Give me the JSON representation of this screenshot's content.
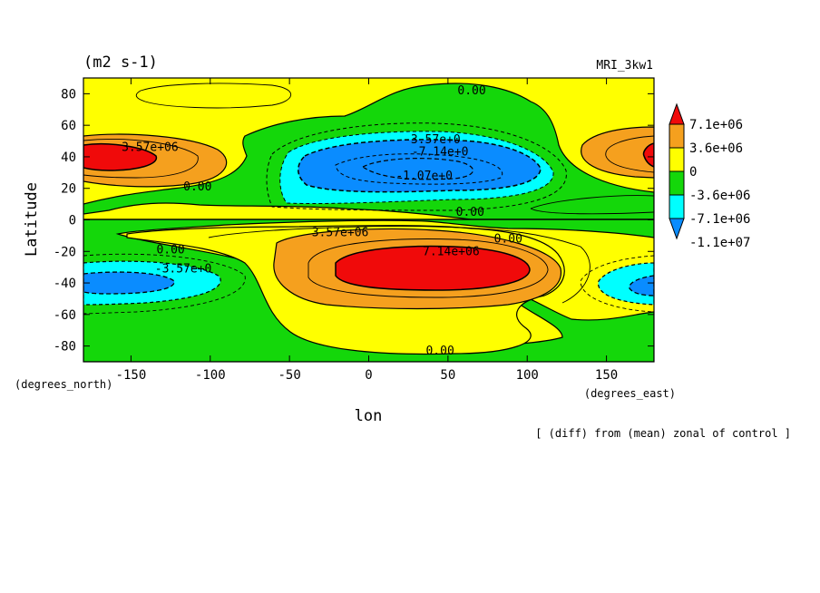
{
  "header": {
    "units": "(m2 s-1)",
    "model": "MRI_3kw1"
  },
  "axes": {
    "ylabel": "Latitude",
    "xlabel": "lon",
    "x_units": "(degrees_east)",
    "y_units": "(degrees_north)"
  },
  "footer": {
    "caption": "[ (diff) from (mean) zonal of control ]"
  },
  "colors": {
    "red": "#f00a0a",
    "orange": "#f5a01e",
    "yellow": "#ffff00",
    "green": "#14d70a",
    "cyan": "#00ffff",
    "blue": "#0a8cff"
  },
  "chart_data": {
    "type": "heatmap",
    "subtype": "filled-contour",
    "title": "",
    "xlabel": "lon",
    "ylabel": "Latitude",
    "xlim": [
      -180,
      180
    ],
    "ylim": [
      -90,
      90
    ],
    "xticks": [
      -150,
      -100,
      -50,
      0,
      50,
      100,
      150
    ],
    "yticks": [
      -80,
      -60,
      -40,
      -20,
      0,
      20,
      40,
      60,
      80
    ],
    "colorbar": {
      "labels": [
        "7.1e+06",
        "3.6e+06",
        "0",
        "-3.6e+06",
        "-7.1e+06",
        "-1.1e+07"
      ],
      "levels": [
        7100000,
        3600000,
        0,
        -3600000,
        -7100000,
        -11000000
      ],
      "colors": [
        "#f00a0a",
        "#f5a01e",
        "#ffff00",
        "#14d70a",
        "#00ffff",
        "#0a8cff"
      ]
    },
    "contour_labels": [
      {
        "text": "0.00",
        "lon": 65,
        "lat": 82
      },
      {
        "text": "3.57e+06",
        "lon": -138,
        "lat": 46
      },
      {
        "text": "-3.57e+0",
        "lon": 40,
        "lat": 51
      },
      {
        "text": "-7.14e+0",
        "lon": 45,
        "lat": 43
      },
      {
        "text": "-1.07e+0",
        "lon": 35,
        "lat": 28
      },
      {
        "text": "0.00",
        "lon": -108,
        "lat": 21
      },
      {
        "text": "0.00",
        "lon": 64,
        "lat": 5
      },
      {
        "text": "3.57e+06",
        "lon": -18,
        "lat": -8
      },
      {
        "text": "0.00",
        "lon": 88,
        "lat": -12
      },
      {
        "text": "7.14e+06",
        "lon": 52,
        "lat": -20
      },
      {
        "text": "0.00",
        "lon": -125,
        "lat": -19
      },
      {
        "text": "-3.57e+0",
        "lon": -117,
        "lat": -31
      },
      {
        "text": "0.00",
        "lon": 45,
        "lat": -83
      }
    ],
    "features": [
      {
        "sign": "positive",
        "max_level": "7.1e+06",
        "lon": -155,
        "lat": 38
      },
      {
        "sign": "positive",
        "max_level": "7.1e+06",
        "lon": 180,
        "lat": 40
      },
      {
        "sign": "negative",
        "min_level": "-1.1e+07",
        "lon": 30,
        "lat": 33
      },
      {
        "sign": "positive",
        "max_level": "7.1e+06",
        "lon": 40,
        "lat": -32
      },
      {
        "sign": "negative",
        "min_level": "-7.1e+06",
        "lon": -150,
        "lat": -38
      },
      {
        "sign": "negative",
        "min_level": "-7.1e+06",
        "lon": 170,
        "lat": -38
      }
    ]
  }
}
